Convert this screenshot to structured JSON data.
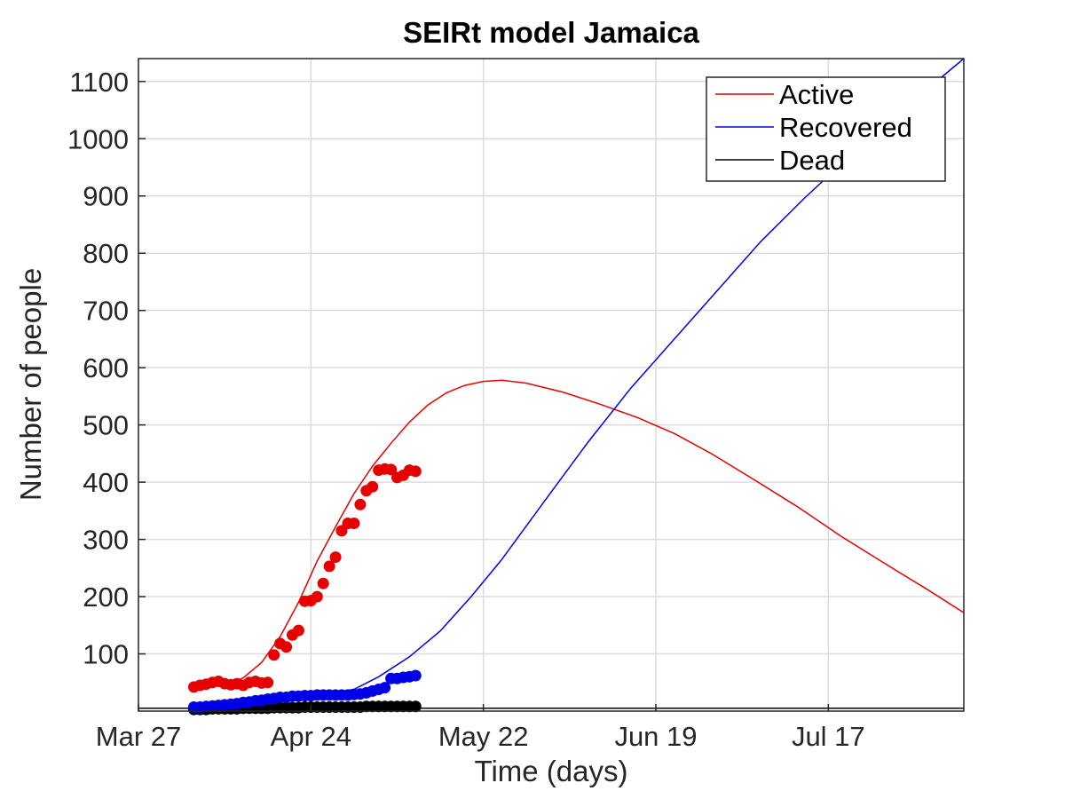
{
  "chart_data": {
    "type": "line",
    "title": "SEIRt model Jamaica",
    "xlabel": "Time (days)",
    "ylabel": "Number of people",
    "x_unit": "date (2020)",
    "xlim": [
      "2020-03-27",
      "2020-08-08"
    ],
    "ylim": [
      0,
      1140
    ],
    "x_ticks": [
      {
        "date": "2020-03-27",
        "label": "Mar 27"
      },
      {
        "date": "2020-04-24",
        "label": "Apr 24"
      },
      {
        "date": "2020-05-22",
        "label": "May 22"
      },
      {
        "date": "2020-06-19",
        "label": "Jun 19"
      },
      {
        "date": "2020-07-17",
        "label": "Jul 17"
      }
    ],
    "y_ticks": [
      100,
      200,
      300,
      400,
      500,
      600,
      700,
      800,
      900,
      1000,
      1100
    ],
    "grid": true,
    "legend_position": "top-right",
    "series": [
      {
        "name": "Active",
        "kind": "model-line",
        "color": "#e60000",
        "points": [
          [
            "2020-04-05",
            44
          ],
          [
            "2020-04-08",
            45
          ],
          [
            "2020-04-11",
            48
          ],
          [
            "2020-04-13",
            58
          ],
          [
            "2020-04-16",
            85
          ],
          [
            "2020-04-19",
            130
          ],
          [
            "2020-04-22",
            190
          ],
          [
            "2020-04-25",
            262
          ],
          [
            "2020-04-28",
            322
          ],
          [
            "2020-05-01",
            380
          ],
          [
            "2020-05-04",
            428
          ],
          [
            "2020-05-07",
            468
          ],
          [
            "2020-05-10",
            505
          ],
          [
            "2020-05-13",
            535
          ],
          [
            "2020-05-16",
            556
          ],
          [
            "2020-05-19",
            569
          ],
          [
            "2020-05-22",
            576
          ],
          [
            "2020-05-25",
            578
          ],
          [
            "2020-05-29",
            573
          ],
          [
            "2020-06-04",
            557
          ],
          [
            "2020-06-10",
            536
          ],
          [
            "2020-06-16",
            513
          ],
          [
            "2020-06-22",
            485
          ],
          [
            "2020-06-28",
            450
          ],
          [
            "2020-07-05",
            404
          ],
          [
            "2020-07-12",
            357
          ],
          [
            "2020-07-19",
            306
          ],
          [
            "2020-07-26",
            259
          ],
          [
            "2020-08-02",
            213
          ],
          [
            "2020-08-08",
            172
          ]
        ]
      },
      {
        "name": "Recovered",
        "kind": "model-line",
        "color": "#0000e6",
        "points": [
          [
            "2020-04-05",
            6
          ],
          [
            "2020-04-15",
            15
          ],
          [
            "2020-04-25",
            28
          ],
          [
            "2020-05-01",
            38
          ],
          [
            "2020-05-05",
            60
          ],
          [
            "2020-05-10",
            95
          ],
          [
            "2020-05-15",
            140
          ],
          [
            "2020-05-20",
            200
          ],
          [
            "2020-05-25",
            265
          ],
          [
            "2020-06-01",
            368
          ],
          [
            "2020-06-08",
            470
          ],
          [
            "2020-06-15",
            565
          ],
          [
            "2020-06-22",
            650
          ],
          [
            "2020-06-29",
            735
          ],
          [
            "2020-07-06",
            820
          ],
          [
            "2020-07-13",
            895
          ],
          [
            "2020-07-20",
            965
          ],
          [
            "2020-07-27",
            1030
          ],
          [
            "2020-08-03",
            1095
          ],
          [
            "2020-08-08",
            1140
          ]
        ]
      },
      {
        "name": "Dead",
        "kind": "model-line",
        "color": "#000000",
        "points": [
          [
            "2020-03-27",
            5
          ],
          [
            "2020-08-08",
            5
          ]
        ]
      },
      {
        "name": "Active (data)",
        "kind": "observed-points",
        "color": "#e60000",
        "points": [
          [
            "2020-04-05",
            42
          ],
          [
            "2020-04-06",
            45
          ],
          [
            "2020-04-07",
            47
          ],
          [
            "2020-04-08",
            50
          ],
          [
            "2020-04-09",
            52
          ],
          [
            "2020-04-10",
            48
          ],
          [
            "2020-04-11",
            46
          ],
          [
            "2020-04-12",
            48
          ],
          [
            "2020-04-13",
            45
          ],
          [
            "2020-04-14",
            50
          ],
          [
            "2020-04-15",
            52
          ],
          [
            "2020-04-16",
            49
          ],
          [
            "2020-04-17",
            50
          ],
          [
            "2020-04-18",
            98
          ],
          [
            "2020-04-19",
            118
          ],
          [
            "2020-04-20",
            112
          ],
          [
            "2020-04-21",
            133
          ],
          [
            "2020-04-22",
            141
          ],
          [
            "2020-04-23",
            192
          ],
          [
            "2020-04-24",
            193
          ],
          [
            "2020-04-25",
            200
          ],
          [
            "2020-04-26",
            223
          ],
          [
            "2020-04-27",
            253
          ],
          [
            "2020-04-28",
            269
          ],
          [
            "2020-04-29",
            315
          ],
          [
            "2020-04-30",
            328
          ],
          [
            "2020-05-01",
            328
          ],
          [
            "2020-05-02",
            361
          ],
          [
            "2020-05-03",
            385
          ],
          [
            "2020-05-04",
            392
          ],
          [
            "2020-05-05",
            421
          ],
          [
            "2020-05-06",
            423
          ],
          [
            "2020-05-07",
            422
          ],
          [
            "2020-05-08",
            408
          ],
          [
            "2020-05-09",
            412
          ],
          [
            "2020-05-10",
            421
          ],
          [
            "2020-05-11",
            419
          ]
        ]
      },
      {
        "name": "Recovered (data)",
        "kind": "observed-points",
        "color": "#0000e6",
        "points": [
          [
            "2020-04-05",
            7
          ],
          [
            "2020-04-06",
            7
          ],
          [
            "2020-04-07",
            8
          ],
          [
            "2020-04-08",
            9
          ],
          [
            "2020-04-09",
            10
          ],
          [
            "2020-04-10",
            11
          ],
          [
            "2020-04-11",
            12
          ],
          [
            "2020-04-12",
            13
          ],
          [
            "2020-04-13",
            15
          ],
          [
            "2020-04-14",
            16
          ],
          [
            "2020-04-15",
            18
          ],
          [
            "2020-04-16",
            19
          ],
          [
            "2020-04-17",
            21
          ],
          [
            "2020-04-18",
            22
          ],
          [
            "2020-04-19",
            24
          ],
          [
            "2020-04-20",
            24
          ],
          [
            "2020-04-21",
            26
          ],
          [
            "2020-04-22",
            26
          ],
          [
            "2020-04-23",
            27
          ],
          [
            "2020-04-24",
            27
          ],
          [
            "2020-04-25",
            28
          ],
          [
            "2020-04-26",
            28
          ],
          [
            "2020-04-27",
            28
          ],
          [
            "2020-04-28",
            28
          ],
          [
            "2020-04-29",
            28
          ],
          [
            "2020-04-30",
            28
          ],
          [
            "2020-05-01",
            29
          ],
          [
            "2020-05-02",
            30
          ],
          [
            "2020-05-03",
            32
          ],
          [
            "2020-05-04",
            35
          ],
          [
            "2020-05-05",
            38
          ],
          [
            "2020-05-06",
            41
          ],
          [
            "2020-05-07",
            57
          ],
          [
            "2020-05-08",
            57
          ],
          [
            "2020-05-09",
            59
          ],
          [
            "2020-05-10",
            60
          ],
          [
            "2020-05-11",
            62
          ]
        ]
      },
      {
        "name": "Dead (data)",
        "kind": "observed-points",
        "color": "#000000",
        "points": [
          [
            "2020-04-05",
            3
          ],
          [
            "2020-04-06",
            3
          ],
          [
            "2020-04-07",
            3
          ],
          [
            "2020-04-08",
            4
          ],
          [
            "2020-04-09",
            4
          ],
          [
            "2020-04-10",
            4
          ],
          [
            "2020-04-11",
            4
          ],
          [
            "2020-04-12",
            4
          ],
          [
            "2020-04-13",
            5
          ],
          [
            "2020-04-14",
            5
          ],
          [
            "2020-04-15",
            5
          ],
          [
            "2020-04-16",
            5
          ],
          [
            "2020-04-17",
            5
          ],
          [
            "2020-04-18",
            6
          ],
          [
            "2020-04-19",
            6
          ],
          [
            "2020-04-20",
            6
          ],
          [
            "2020-04-21",
            6
          ],
          [
            "2020-04-22",
            6
          ],
          [
            "2020-04-23",
            7
          ],
          [
            "2020-04-24",
            7
          ],
          [
            "2020-04-25",
            7
          ],
          [
            "2020-04-26",
            7
          ],
          [
            "2020-04-27",
            7
          ],
          [
            "2020-04-28",
            7
          ],
          [
            "2020-04-29",
            7
          ],
          [
            "2020-04-30",
            7
          ],
          [
            "2020-05-01",
            7
          ],
          [
            "2020-05-02",
            7
          ],
          [
            "2020-05-03",
            8
          ],
          [
            "2020-05-04",
            8
          ],
          [
            "2020-05-05",
            8
          ],
          [
            "2020-05-06",
            8
          ],
          [
            "2020-05-07",
            8
          ],
          [
            "2020-05-08",
            8
          ],
          [
            "2020-05-09",
            8
          ],
          [
            "2020-05-10",
            8
          ],
          [
            "2020-05-11",
            8
          ]
        ]
      }
    ],
    "legend": [
      "Active",
      "Recovered",
      "Dead"
    ]
  }
}
